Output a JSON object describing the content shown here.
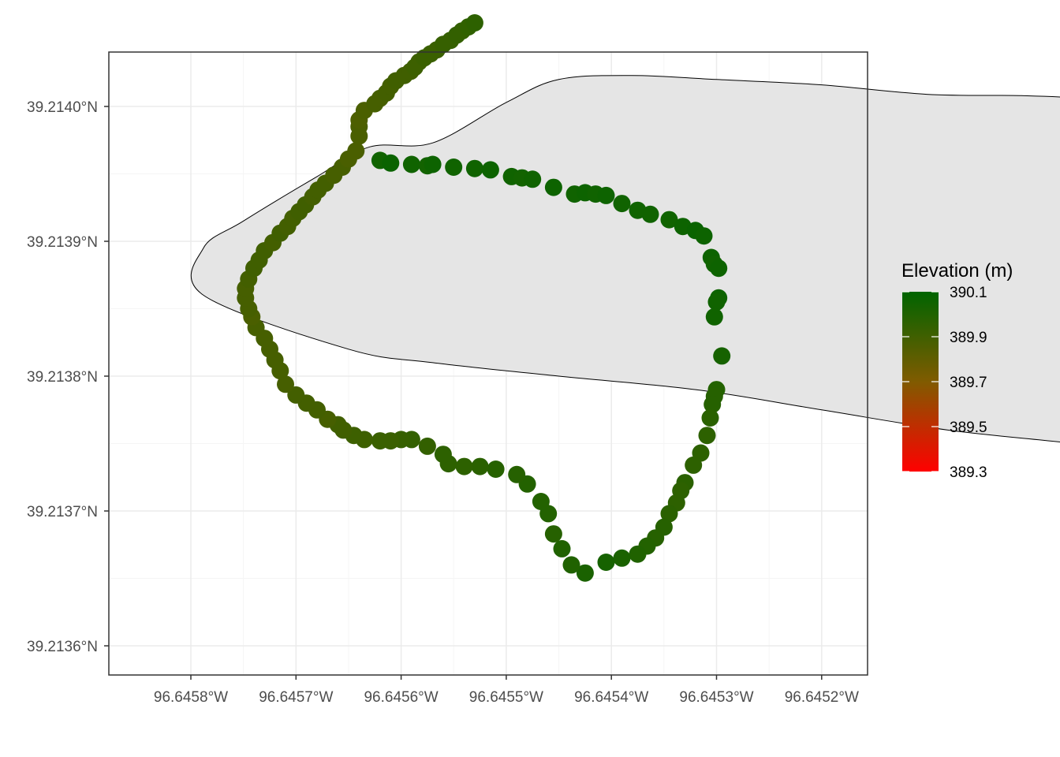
{
  "chart_data": {
    "type": "scatter",
    "title": "",
    "xlabel": "",
    "ylabel": "",
    "grid": true,
    "xlim": [
      -96.64588,
      -96.64515
    ],
    "ylim": [
      39.21356,
      39.21404
    ],
    "x_ticks": [
      {
        "value": -96.6458,
        "label": "96.6458°W"
      },
      {
        "value": -96.6457,
        "label": "96.6457°W"
      },
      {
        "value": -96.6456,
        "label": "96.6456°W"
      },
      {
        "value": -96.6455,
        "label": "96.6455°W"
      },
      {
        "value": -96.6454,
        "label": "96.6454°W"
      },
      {
        "value": -96.6453,
        "label": "96.6453°W"
      },
      {
        "value": -96.6452,
        "label": "96.6452°W"
      }
    ],
    "y_ticks": [
      {
        "value": 39.2136,
        "label": "39.2136°N"
      },
      {
        "value": 39.2137,
        "label": "39.2137°N"
      },
      {
        "value": 39.2138,
        "label": "39.2138°N"
      },
      {
        "value": 39.2139,
        "label": "39.2139°N"
      },
      {
        "value": 39.214,
        "label": "39.2140°N"
      }
    ],
    "boundary_fill": "#e5e5e5",
    "boundary": [
      [
        -96.645788,
        39.213895
      ],
      [
        -96.64575,
        39.213915
      ],
      [
        -96.64568,
        39.213948
      ],
      [
        -96.64563,
        39.21397
      ],
      [
        -96.64557,
        39.213973
      ],
      [
        -96.6455,
        39.214003
      ],
      [
        -96.64545,
        39.21402
      ],
      [
        -96.64538,
        39.214023
      ],
      [
        -96.6453,
        39.21402
      ],
      [
        -96.6452,
        39.214016
      ],
      [
        -96.6451,
        39.214009
      ],
      [
        -96.64501,
        39.214008
      ],
      [
        -96.64495,
        39.214006
      ],
      [
        -96.64487,
        39.214
      ],
      [
        -96.64479,
        39.213999
      ],
      [
        -96.64473,
        39.213992
      ],
      [
        -96.64465,
        39.213991
      ],
      [
        -96.6446,
        39.213987
      ],
      [
        -96.64454,
        39.213985
      ],
      [
        -96.6444,
        39.21398
      ],
      [
        -96.6443,
        39.213974
      ],
      [
        -96.6442,
        39.213969
      ],
      [
        -96.6441,
        39.213965
      ],
      [
        -96.644,
        39.21396
      ],
      [
        -96.64395,
        39.213958
      ],
      [
        -96.6438,
        39.213949
      ],
      [
        -96.6437,
        39.21394
      ],
      [
        -96.64362,
        39.21392
      ],
      [
        -96.64354,
        39.213888
      ],
      [
        -96.64349,
        39.21386
      ],
      [
        -96.64348,
        39.2138
      ],
      [
        -96.64348,
        39.21375
      ],
      [
        -96.64352,
        39.21371
      ],
      [
        -96.64356,
        39.21367
      ],
      [
        -96.6436,
        39.21365
      ],
      [
        -96.64365,
        39.2136
      ],
      [
        -96.6437,
        39.21359
      ],
      [
        -96.6438,
        39.21358
      ],
      [
        -96.64388,
        39.213592
      ],
      [
        -96.64396,
        39.213598
      ],
      [
        -96.64405,
        39.21361
      ],
      [
        -96.64411,
        39.213618
      ],
      [
        -96.6442,
        39.213642
      ],
      [
        -96.64425,
        39.21368
      ],
      [
        -96.6443,
        39.213693
      ],
      [
        -96.6444,
        39.2137
      ],
      [
        -96.6445,
        39.2137
      ],
      [
        -96.64458,
        39.213698
      ],
      [
        -96.64468,
        39.21371
      ],
      [
        -96.64478,
        39.213727
      ],
      [
        -96.64486,
        39.21374
      ],
      [
        -96.64496,
        39.21375
      ],
      [
        -96.64508,
        39.21376
      ],
      [
        -96.6452,
        39.213775
      ],
      [
        -96.64532,
        39.21379
      ],
      [
        -96.64545,
        39.2138
      ],
      [
        -96.64557,
        39.21381
      ],
      [
        -96.64565,
        39.21382
      ],
      [
        -96.645788,
        39.21386
      ]
    ],
    "series": [
      {
        "name": "Elevation (m)",
        "points": [
          [
            -96.64562,
            39.21396,
            390.05
          ],
          [
            -96.64561,
            39.213958,
            390.07
          ],
          [
            -96.64559,
            39.213957,
            390.05
          ],
          [
            -96.645575,
            39.213956,
            390.04
          ],
          [
            -96.64557,
            39.213957,
            390.06
          ],
          [
            -96.64555,
            39.213955,
            390.05
          ],
          [
            -96.64553,
            39.213954,
            390.05
          ],
          [
            -96.645515,
            39.213953,
            390.06
          ],
          [
            -96.645495,
            39.213948,
            390.05
          ],
          [
            -96.645485,
            39.213947,
            390.04
          ],
          [
            -96.645475,
            39.213946,
            390.05
          ],
          [
            -96.645455,
            39.21394,
            390.06
          ],
          [
            -96.645435,
            39.213935,
            390.05
          ],
          [
            -96.645425,
            39.213936,
            390.06
          ],
          [
            -96.645415,
            39.213935,
            390.05
          ],
          [
            -96.645405,
            39.213934,
            390.06
          ],
          [
            -96.64539,
            39.213928,
            390.05
          ],
          [
            -96.645375,
            39.213923,
            390.05
          ],
          [
            -96.645363,
            39.21392,
            390.05
          ],
          [
            -96.645345,
            39.213916,
            390.05
          ],
          [
            -96.645332,
            39.213911,
            390.06
          ],
          [
            -96.64532,
            39.213908,
            390.07
          ],
          [
            -96.645312,
            39.213904,
            390.06
          ],
          [
            -96.645305,
            39.213888,
            390.06
          ],
          [
            -96.645302,
            39.213883,
            390.05
          ],
          [
            -96.645298,
            39.21388,
            390.06
          ],
          [
            -96.645298,
            39.213858,
            390.06
          ],
          [
            -96.6453,
            39.213855,
            390.05
          ],
          [
            -96.645302,
            39.213844,
            390.05
          ],
          [
            -96.645295,
            39.213815,
            390.03
          ],
          [
            -96.6453,
            39.21379,
            389.99
          ],
          [
            -96.645302,
            39.213785,
            389.98
          ],
          [
            -96.645304,
            39.213779,
            389.98
          ],
          [
            -96.645306,
            39.213769,
            389.97
          ],
          [
            -96.645309,
            39.213756,
            389.96
          ],
          [
            -96.645315,
            39.213743,
            389.96
          ],
          [
            -96.645322,
            39.213734,
            389.96
          ],
          [
            -96.64533,
            39.213721,
            389.97
          ],
          [
            -96.645334,
            39.213715,
            389.96
          ],
          [
            -96.645338,
            39.213706,
            389.96
          ],
          [
            -96.645345,
            39.213698,
            389.97
          ],
          [
            -96.64535,
            39.213688,
            389.98
          ],
          [
            -96.645358,
            39.21368,
            389.98
          ],
          [
            -96.645366,
            39.213674,
            389.99
          ],
          [
            -96.645375,
            39.213668,
            390.0
          ],
          [
            -96.64539,
            39.213665,
            390.02
          ],
          [
            -96.645405,
            39.213662,
            390.03
          ],
          [
            -96.645425,
            39.213654,
            390.02
          ],
          [
            -96.645438,
            39.21366,
            390.0
          ],
          [
            -96.645447,
            39.213672,
            390.0
          ],
          [
            -96.645455,
            39.213683,
            389.98
          ],
          [
            -96.64546,
            39.213698,
            389.99
          ],
          [
            -96.645467,
            39.213707,
            389.99
          ],
          [
            -96.64548,
            39.21372,
            389.99
          ],
          [
            -96.64549,
            39.213727,
            389.98
          ],
          [
            -96.64551,
            39.213731,
            389.98
          ],
          [
            -96.645525,
            39.213733,
            389.97
          ],
          [
            -96.64554,
            39.213733,
            389.96
          ],
          [
            -96.645555,
            39.213735,
            389.96
          ],
          [
            -96.64556,
            39.213742,
            389.96
          ],
          [
            -96.645575,
            39.213748,
            389.94
          ],
          [
            -96.64559,
            39.213753,
            389.94
          ],
          [
            -96.6456,
            39.213753,
            389.93
          ],
          [
            -96.64561,
            39.213752,
            389.92
          ],
          [
            -96.64562,
            39.213752,
            389.92
          ],
          [
            -96.645635,
            39.213753,
            389.91
          ],
          [
            -96.645645,
            39.213756,
            389.91
          ],
          [
            -96.645655,
            39.21376,
            389.9
          ],
          [
            -96.64566,
            39.213764,
            389.9
          ],
          [
            -96.64567,
            39.213768,
            389.88
          ],
          [
            -96.64568,
            39.213775,
            389.89
          ],
          [
            -96.64569,
            39.21378,
            389.89
          ],
          [
            -96.6457,
            39.213786,
            389.89
          ],
          [
            -96.64571,
            39.213794,
            389.88
          ],
          [
            -96.645715,
            39.213804,
            389.88
          ],
          [
            -96.64572,
            39.213812,
            389.88
          ],
          [
            -96.645725,
            39.21382,
            389.88
          ],
          [
            -96.64573,
            39.213828,
            389.88
          ],
          [
            -96.645738,
            39.213836,
            389.88
          ],
          [
            -96.645742,
            39.213844,
            389.87
          ],
          [
            -96.645745,
            39.21385,
            389.88
          ],
          [
            -96.645748,
            39.213858,
            389.88
          ],
          [
            -96.645748,
            39.213865,
            389.88
          ],
          [
            -96.645745,
            39.213872,
            389.89
          ],
          [
            -96.64574,
            39.21388,
            389.9
          ],
          [
            -96.645735,
            39.213886,
            389.9
          ],
          [
            -96.64573,
            39.213893,
            389.9
          ],
          [
            -96.645722,
            39.213899,
            389.89
          ],
          [
            -96.645715,
            39.213906,
            389.9
          ],
          [
            -96.645708,
            39.213911,
            389.89
          ],
          [
            -96.645703,
            39.213917,
            389.89
          ],
          [
            -96.645697,
            39.213922,
            389.9
          ],
          [
            -96.645691,
            39.213927,
            389.9
          ],
          [
            -96.645684,
            39.213933,
            389.89
          ],
          [
            -96.645679,
            39.213938,
            389.89
          ],
          [
            -96.645672,
            39.213943,
            389.89
          ],
          [
            -96.645664,
            39.213949,
            389.88
          ],
          [
            -96.645656,
            39.213955,
            389.88
          ],
          [
            -96.64565,
            39.213961,
            389.87
          ],
          [
            -96.645643,
            39.213967,
            389.87
          ],
          [
            -96.64564,
            39.213978,
            389.87
          ],
          [
            -96.64564,
            39.213985,
            389.87
          ],
          [
            -96.64564,
            39.21399,
            389.86
          ],
          [
            -96.645635,
            39.213997,
            389.87
          ],
          [
            -96.645625,
            39.214002,
            389.88
          ],
          [
            -96.64562,
            39.214006,
            389.88
          ],
          [
            -96.645614,
            39.21401,
            389.89
          ],
          [
            -96.64561,
            39.214015,
            389.89
          ],
          [
            -96.645605,
            39.214019,
            389.9
          ],
          [
            -96.645597,
            39.214023,
            389.9
          ],
          [
            -96.645591,
            39.214026,
            389.9
          ],
          [
            -96.645587,
            39.214029,
            389.91
          ],
          [
            -96.645583,
            39.214033,
            389.91
          ],
          [
            -96.645578,
            39.214036,
            389.92
          ],
          [
            -96.645572,
            39.214039,
            389.92
          ],
          [
            -96.645566,
            39.214042,
            389.92
          ],
          [
            -96.64556,
            39.214046,
            389.93
          ],
          [
            -96.645553,
            39.214049,
            389.93
          ],
          [
            -96.645547,
            39.214053,
            389.94
          ],
          [
            -96.645542,
            39.214056,
            389.94
          ],
          [
            -96.645536,
            39.214059,
            389.95
          ],
          [
            -96.64553,
            39.214062,
            389.96
          ]
        ]
      }
    ],
    "legend": {
      "title": "Elevation (m)",
      "position": "right",
      "min": 389.3,
      "max": 390.1,
      "low_color": "#ff0000",
      "high_color": "#006400",
      "labels": [
        "390.1",
        "389.9",
        "389.7",
        "389.5",
        "389.3"
      ],
      "label_values": [
        390.1,
        389.9,
        389.7,
        389.5,
        389.3
      ]
    }
  }
}
